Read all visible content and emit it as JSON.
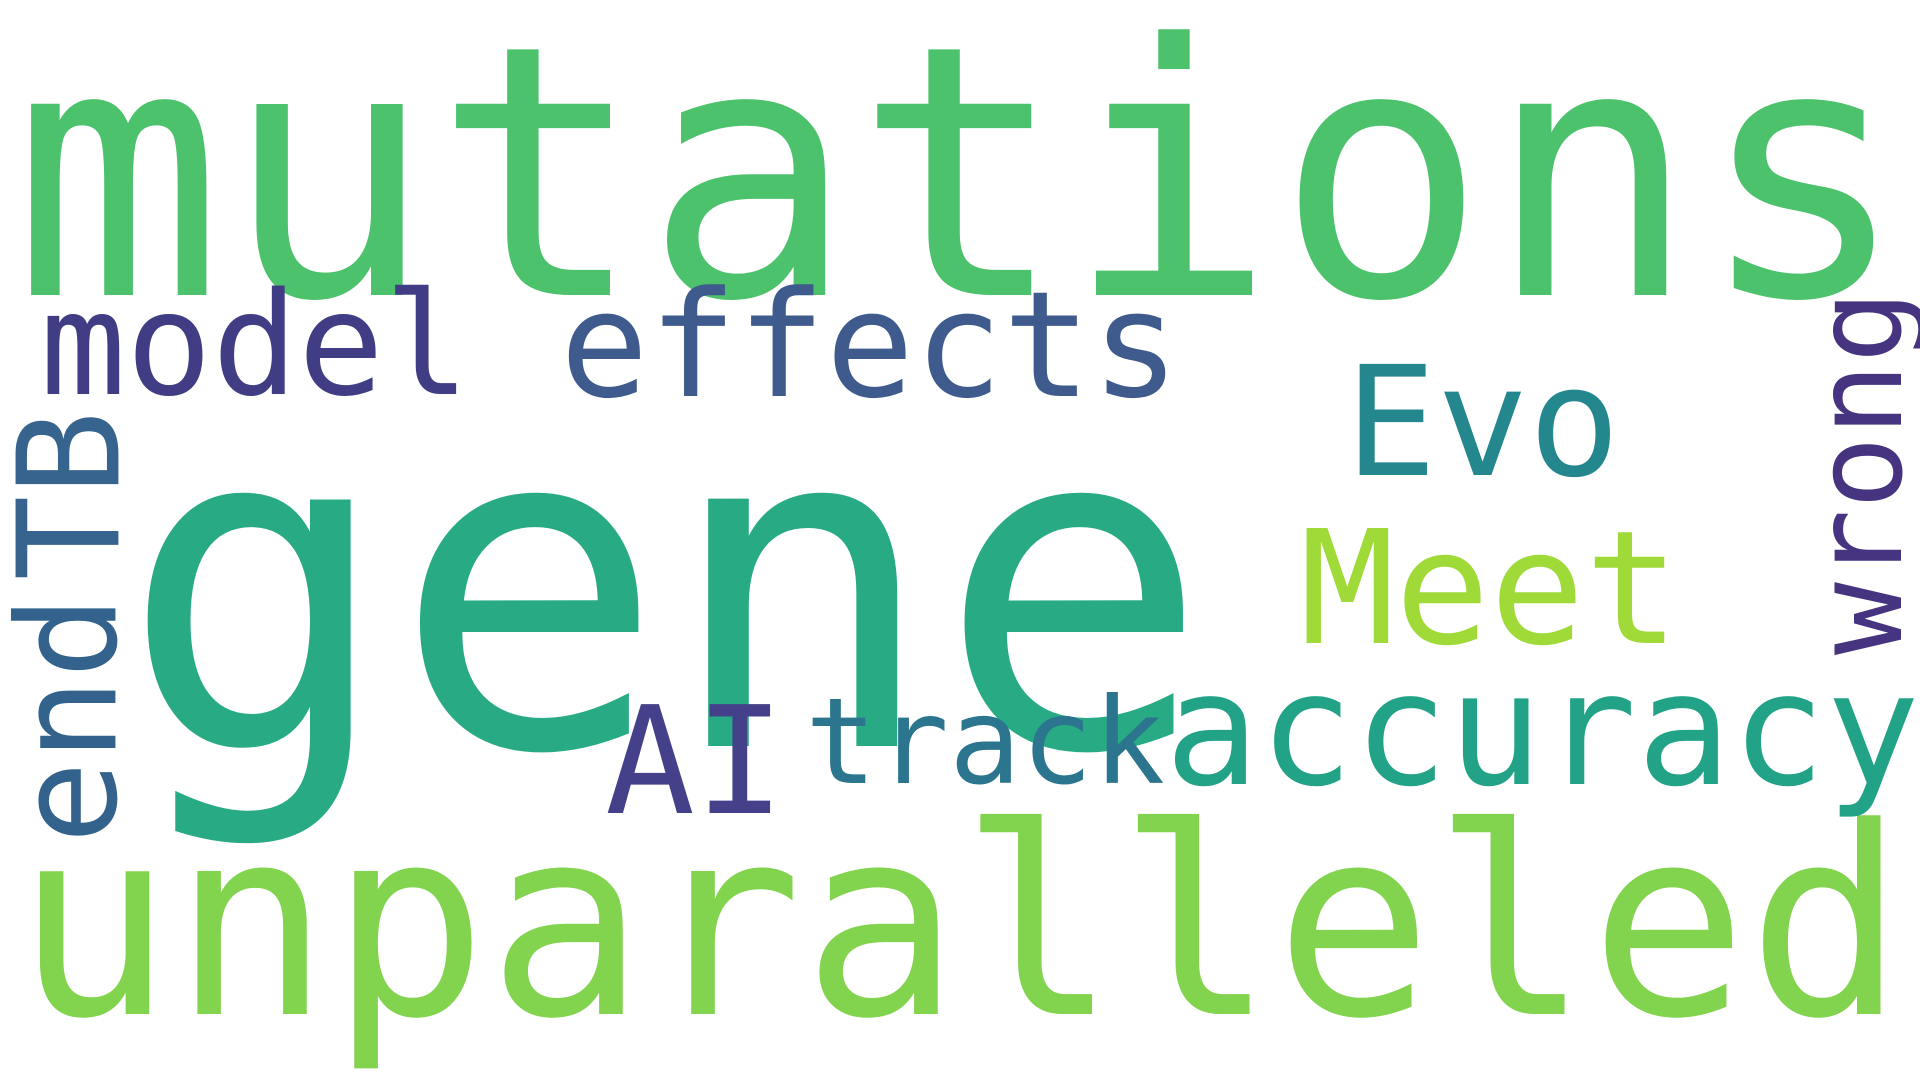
{
  "background_color": "#ffffff",
  "words": [
    {
      "id": "mutations",
      "text": "mutations",
      "color": "#4cc26c",
      "rotated": false
    },
    {
      "id": "gene",
      "text": "gene",
      "color": "#28ab84",
      "rotated": false
    },
    {
      "id": "unparalleled",
      "text": "unparalleled",
      "color": "#82d34e",
      "rotated": false
    },
    {
      "id": "model",
      "text": "model",
      "color": "#413d84",
      "rotated": false
    },
    {
      "id": "effects",
      "text": "effects",
      "color": "#3f5a8c",
      "rotated": false
    },
    {
      "id": "evo",
      "text": "Evo",
      "color": "#24878e",
      "rotated": false
    },
    {
      "id": "meet",
      "text": "Meet",
      "color": "#a0da39",
      "rotated": false
    },
    {
      "id": "accuracy",
      "text": "accuracy",
      "color": "#22a286",
      "rotated": false
    },
    {
      "id": "ai",
      "text": "AI",
      "color": "#45408a",
      "rotated": false
    },
    {
      "id": "track",
      "text": "track",
      "color": "#2b768e",
      "rotated": false
    },
    {
      "id": "wrong",
      "text": "wrong",
      "color": "#463480",
      "rotated": true
    },
    {
      "id": "tb",
      "text": "TB",
      "color": "#37648e",
      "rotated": true
    },
    {
      "id": "end",
      "text": "end",
      "color": "#33638d",
      "rotated": true
    }
  ]
}
